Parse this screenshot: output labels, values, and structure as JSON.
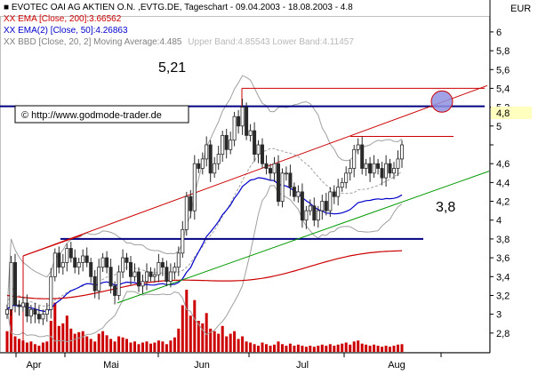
{
  "header": {
    "line1": "EVOTEC OAI AG AKTIEN O.N. ,EVTG.DE, Tageschart - 09.04.2003 - 18.08.2003 - 4.8",
    "line2": "XX EMA [Close, 200]:3.66562",
    "line3": "XX EMA(2) [Close, 50]:4.26863",
    "line4_main": "XX BBD [Close, 20, 2] Moving Average:4.485",
    "line4_bands": "Upper Band:4.85543 Lower Band:4.11457"
  },
  "currency": "EUR",
  "watermark": "© http://www.godmode-trader.de",
  "annotations": {
    "resistance_label": "5,21",
    "support_label": "3,8",
    "last_price_label": "4,8"
  },
  "colors": {
    "candle_body": "#2a2a2a",
    "ema200": "#cc0000",
    "ema50": "#0000cc",
    "bollinger": "#a0a0a0",
    "volume": "#cc0000",
    "channel": "#cc0000",
    "support_trend": "#009900",
    "horizontal": "#000080",
    "circle_fill": "#9090e0"
  },
  "chart_data": {
    "type": "candlestick",
    "title": "EVOTEC OAI AG AKTIEN O.N. ,EVTG.DE, Tageschart - 09.04.2003 - 18.08.2003 - 4.8",
    "x_labels": [
      "Apr",
      "Mai",
      "Jun",
      "Jul",
      "Aug"
    ],
    "y_ticks": [
      "2,8",
      "3",
      "3,2",
      "3,4",
      "3,6",
      "3,8",
      "4",
      "4,2",
      "4,4",
      "4,6",
      "4,8",
      "5",
      "5,2",
      "5,4",
      "5,6",
      "5,8",
      "6"
    ],
    "y_tick_values": [
      2.8,
      3.0,
      3.2,
      3.4,
      3.6,
      3.8,
      4.0,
      4.2,
      4.4,
      4.6,
      4.8,
      5.0,
      5.2,
      5.4,
      5.6,
      5.8,
      6.0
    ],
    "ylim": [
      2.6,
      6.15
    ],
    "legend_position": "top-left",
    "grid": false,
    "levels": {
      "resistance": 5.21,
      "support": 3.8,
      "last": 4.8
    },
    "indicators": {
      "ema200_last": 3.66562,
      "ema50_last": 4.26863,
      "bb_mid_last": 4.485,
      "bb_upper_last": 4.85543,
      "bb_lower_last": 4.11457
    },
    "closes": [
      3.05,
      3.55,
      3.1,
      3.08,
      3.12,
      2.98,
      3.05,
      3.0,
      2.95,
      3.0,
      3.05,
      3.4,
      3.65,
      3.5,
      3.55,
      3.7,
      3.6,
      3.5,
      3.55,
      3.62,
      3.55,
      3.4,
      3.25,
      3.5,
      3.6,
      3.5,
      3.3,
      3.2,
      3.45,
      3.6,
      3.55,
      3.4,
      3.45,
      3.3,
      3.35,
      3.45,
      3.4,
      3.42,
      3.55,
      3.5,
      3.35,
      3.45,
      3.5,
      3.65,
      3.9,
      4.25,
      4.1,
      4.6,
      4.55,
      4.65,
      4.8,
      4.5,
      4.6,
      4.7,
      4.9,
      4.75,
      4.85,
      5.1,
      5.0,
      5.2,
      4.9,
      4.95,
      4.7,
      4.8,
      4.6,
      4.55,
      4.5,
      4.6,
      4.2,
      4.5,
      4.5,
      4.35,
      4.25,
      4.3,
      4.0,
      4.1,
      4.15,
      4.0,
      4.1,
      4.2,
      4.1,
      4.3,
      4.25,
      4.35,
      4.4,
      4.5,
      4.55,
      4.75,
      4.8,
      4.55,
      4.6,
      4.5,
      4.6,
      4.55,
      4.45,
      4.6,
      4.5,
      4.55,
      4.65,
      4.8
    ],
    "volumes": [
      40,
      85,
      30,
      25,
      22,
      18,
      20,
      15,
      12,
      18,
      20,
      60,
      95,
      50,
      55,
      70,
      45,
      35,
      38,
      40,
      30,
      25,
      20,
      35,
      40,
      32,
      25,
      20,
      30,
      28,
      25,
      18,
      20,
      15,
      18,
      20,
      16,
      18,
      22,
      20,
      15,
      22,
      28,
      45,
      90,
      120,
      70,
      100,
      60,
      55,
      75,
      45,
      40,
      35,
      50,
      30,
      35,
      40,
      25,
      30,
      20,
      18,
      15,
      12,
      18,
      15,
      12,
      14,
      20,
      15,
      12,
      16,
      12,
      14,
      12,
      10,
      12,
      10,
      12,
      14,
      12,
      15,
      12,
      14,
      16,
      18,
      14,
      20,
      22,
      16,
      14,
      12,
      14,
      12,
      10,
      12,
      10,
      12,
      14,
      15
    ]
  }
}
